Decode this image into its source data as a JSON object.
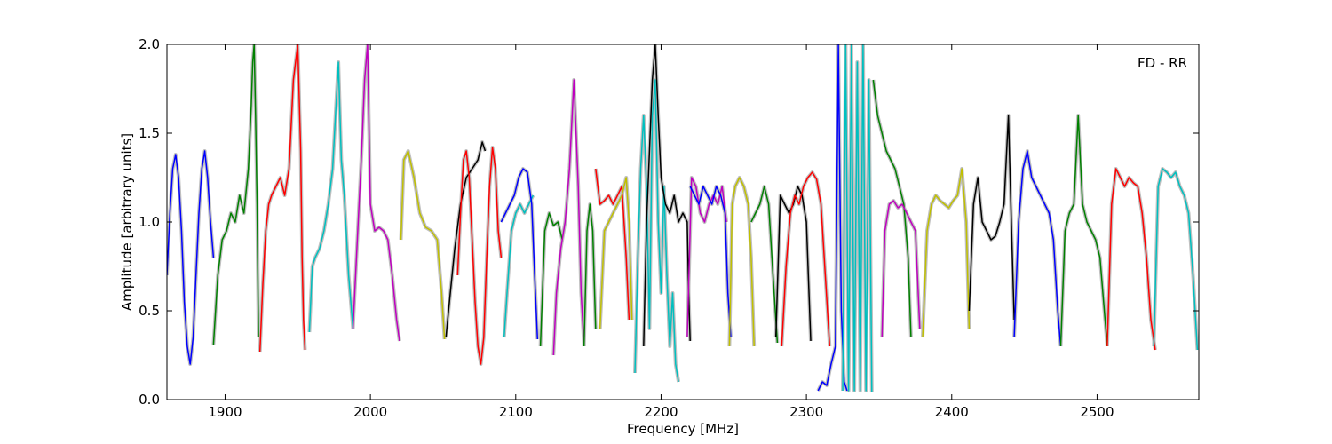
{
  "chart_data": {
    "type": "line",
    "annotation": "FD - RR",
    "xlabel": "Frequency [MHz]",
    "ylabel": "Amplitude [arbitrary units]",
    "xlim": [
      1860,
      2570
    ],
    "ylim": [
      0.0,
      2.0
    ],
    "x_ticks": [
      1900,
      2000,
      2100,
      2200,
      2300,
      2400,
      2500
    ],
    "x_tick_labels": [
      "1900",
      "2000",
      "2100",
      "2200",
      "2300",
      "2400",
      "2500"
    ],
    "y_ticks": [
      0.0,
      0.5,
      1.0,
      1.5,
      2.0
    ],
    "y_tick_labels": [
      "0.0",
      "0.5",
      "1.0",
      "1.5",
      "2.0"
    ],
    "grid": false,
    "legend": "none",
    "background_color": "#c0c0c0",
    "series": [
      {
        "color": "#0000ff",
        "x": [
          1860,
          1862,
          1864,
          1866,
          1868,
          1870,
          1872,
          1874,
          1876,
          1878,
          1880,
          1882,
          1884,
          1886,
          1888,
          1890,
          1892
        ],
        "y": [
          0.7,
          1.05,
          1.3,
          1.38,
          1.25,
          0.95,
          0.55,
          0.3,
          0.2,
          0.35,
          0.7,
          1.05,
          1.3,
          1.4,
          1.25,
          1.0,
          0.8
        ]
      },
      {
        "color": "#008000",
        "x": [
          1892,
          1895,
          1898,
          1901,
          1904,
          1907,
          1910,
          1913,
          1916,
          1918,
          1919,
          1920,
          1921,
          1922,
          1923
        ],
        "y": [
          0.31,
          0.7,
          0.9,
          0.95,
          1.05,
          1.0,
          1.15,
          1.05,
          1.3,
          1.65,
          1.9,
          2.0,
          1.6,
          1.1,
          0.35
        ]
      },
      {
        "color": "#ff0000",
        "x": [
          1924,
          1926,
          1928,
          1930,
          1932,
          1935,
          1938,
          1941,
          1944,
          1947,
          1950,
          1952,
          1953,
          1954,
          1955
        ],
        "y": [
          0.27,
          0.65,
          0.95,
          1.1,
          1.15,
          1.2,
          1.25,
          1.15,
          1.3,
          1.8,
          2.0,
          1.4,
          0.8,
          0.45,
          0.28
        ]
      },
      {
        "color": "#00bfbf",
        "x": [
          1958,
          1960,
          1962,
          1965,
          1968,
          1971,
          1974,
          1976,
          1978,
          1980,
          1982,
          1985,
          1988
        ],
        "y": [
          0.38,
          0.75,
          0.8,
          0.85,
          0.95,
          1.1,
          1.3,
          1.6,
          1.9,
          1.35,
          1.15,
          0.7,
          0.4
        ]
      },
      {
        "color": "#bf00bf",
        "x": [
          1988,
          1991,
          1994,
          1996,
          1998,
          2000,
          2003,
          2006,
          2009,
          2012,
          2015,
          2018,
          2020
        ],
        "y": [
          0.4,
          0.9,
          1.4,
          1.8,
          2.0,
          1.1,
          0.95,
          0.97,
          0.95,
          0.9,
          0.7,
          0.45,
          0.33
        ]
      },
      {
        "color": "#bfbf00",
        "x": [
          2021,
          2023,
          2026,
          2030,
          2034,
          2038,
          2042,
          2046,
          2049,
          2051
        ],
        "y": [
          0.9,
          1.35,
          1.4,
          1.25,
          1.05,
          0.97,
          0.95,
          0.9,
          0.6,
          0.34
        ]
      },
      {
        "color": "#000000",
        "x": [
          2052,
          2055,
          2058,
          2062,
          2066,
          2070,
          2074,
          2077,
          2079
        ],
        "y": [
          0.35,
          0.6,
          0.85,
          1.1,
          1.25,
          1.3,
          1.35,
          1.45,
          1.4
        ]
      },
      {
        "color": "#ff0000",
        "x": [
          2060,
          2062,
          2064,
          2066,
          2068,
          2070,
          2072,
          2074,
          2076,
          2078,
          2080,
          2082,
          2084,
          2086,
          2088,
          2090
        ],
        "y": [
          0.7,
          1.05,
          1.35,
          1.4,
          1.25,
          0.9,
          0.55,
          0.3,
          0.2,
          0.35,
          0.8,
          1.2,
          1.42,
          1.3,
          0.95,
          0.8
        ]
      },
      {
        "color": "#00bfbf",
        "x": [
          2092,
          2094,
          2097,
          2100,
          2103,
          2106,
          2109,
          2112
        ],
        "y": [
          0.35,
          0.6,
          0.95,
          1.05,
          1.1,
          1.05,
          1.1,
          1.15
        ]
      },
      {
        "color": "#0000ff",
        "x": [
          2090,
          2093,
          2096,
          2099,
          2102,
          2105,
          2108,
          2111,
          2113,
          2115
        ],
        "y": [
          1.0,
          1.05,
          1.1,
          1.15,
          1.25,
          1.3,
          1.28,
          1.1,
          0.7,
          0.34
        ]
      },
      {
        "color": "#008000",
        "x": [
          2117,
          2120,
          2123,
          2126,
          2129,
          2132
        ],
        "y": [
          0.3,
          0.95,
          1.05,
          0.98,
          1.0,
          0.9
        ]
      },
      {
        "color": "#bf00bf",
        "x": [
          2126,
          2128,
          2131,
          2134,
          2137,
          2140,
          2143,
          2145,
          2147
        ],
        "y": [
          0.25,
          0.6,
          0.85,
          1.0,
          1.3,
          1.8,
          1.2,
          0.6,
          0.3
        ]
      },
      {
        "color": "#008000",
        "x": [
          2147,
          2149,
          2151,
          2153,
          2155
        ],
        "y": [
          0.3,
          0.95,
          1.1,
          0.95,
          0.4
        ]
      },
      {
        "color": "#ff0000",
        "x": [
          2155,
          2158,
          2161,
          2164,
          2167,
          2170,
          2173,
          2176,
          2178
        ],
        "y": [
          1.3,
          1.1,
          1.12,
          1.15,
          1.1,
          1.15,
          1.2,
          0.8,
          0.45
        ]
      },
      {
        "color": "#bfbf00",
        "x": [
          2158,
          2161,
          2164,
          2167,
          2170,
          2173,
          2176,
          2178,
          2180
        ],
        "y": [
          0.4,
          0.95,
          1.0,
          1.05,
          1.1,
          1.15,
          1.25,
          1.0,
          0.45
        ]
      },
      {
        "color": "#00bfbf",
        "x": [
          2182,
          2184,
          2186,
          2188,
          2190,
          2192,
          2194,
          2196,
          2198,
          2200,
          2202,
          2204,
          2206,
          2208,
          2210,
          2212
        ],
        "y": [
          0.15,
          0.8,
          1.3,
          1.6,
          1.2,
          0.4,
          1.6,
          1.8,
          1.0,
          0.6,
          1.2,
          0.7,
          0.3,
          0.6,
          0.2,
          0.1
        ]
      },
      {
        "color": "#000000",
        "x": [
          2188,
          2190,
          2192,
          2194,
          2196,
          2198,
          2200,
          2203,
          2206,
          2209,
          2212,
          2215,
          2218,
          2219,
          2220
        ],
        "y": [
          0.3,
          1.0,
          1.4,
          1.8,
          2.0,
          1.6,
          1.25,
          1.1,
          1.05,
          1.15,
          1.0,
          1.05,
          1.0,
          0.6,
          0.33
        ]
      },
      {
        "color": "#bf00bf",
        "x": [
          2218,
          2221,
          2224,
          2227,
          2230,
          2233,
          2236,
          2239,
          2242,
          2245
        ],
        "y": [
          0.35,
          1.25,
          1.2,
          1.05,
          1.0,
          1.1,
          1.15,
          1.1,
          1.2,
          1.0
        ]
      },
      {
        "color": "#0000ff",
        "x": [
          2220,
          2223,
          2226,
          2229,
          2232,
          2235,
          2238,
          2241,
          2244,
          2246,
          2248
        ],
        "y": [
          1.2,
          1.15,
          1.1,
          1.2,
          1.15,
          1.1,
          1.2,
          1.15,
          1.05,
          0.6,
          0.35
        ]
      },
      {
        "color": "#bfbf00",
        "x": [
          2247,
          2249,
          2251,
          2254,
          2257,
          2260,
          2262,
          2264
        ],
        "y": [
          0.3,
          1.1,
          1.2,
          1.25,
          1.2,
          1.1,
          0.8,
          0.3
        ]
      },
      {
        "color": "#008000",
        "x": [
          2262,
          2265,
          2268,
          2271,
          2274,
          2277,
          2280
        ],
        "y": [
          1.0,
          1.05,
          1.1,
          1.2,
          1.1,
          0.7,
          0.32
        ]
      },
      {
        "color": "#000000",
        "x": [
          2279,
          2282,
          2285,
          2288,
          2291,
          2294,
          2297,
          2300,
          2303
        ],
        "y": [
          0.35,
          1.15,
          1.1,
          1.05,
          1.1,
          1.2,
          1.15,
          1.0,
          0.33
        ]
      },
      {
        "color": "#ff0000",
        "x": [
          2283,
          2286,
          2289,
          2292,
          2295,
          2298,
          2301,
          2304,
          2307,
          2310,
          2313,
          2316
        ],
        "y": [
          0.3,
          0.75,
          1.05,
          1.15,
          1.1,
          1.2,
          1.25,
          1.28,
          1.24,
          1.1,
          0.7,
          0.3
        ]
      },
      {
        "color": "#0000ff",
        "x": [
          2308,
          2311,
          2314,
          2317,
          2320,
          2322,
          2324,
          2326,
          2328
        ],
        "y": [
          0.05,
          0.1,
          0.08,
          0.2,
          0.3,
          2.0,
          0.5,
          0.1,
          0.05
        ]
      },
      {
        "color": "#00bfbf",
        "x": [
          2325,
          2327,
          2329,
          2331,
          2333,
          2335,
          2337,
          2339,
          2341,
          2343,
          2345
        ],
        "y": [
          0.05,
          2.0,
          0.05,
          2.0,
          0.05,
          1.9,
          0.05,
          2.0,
          0.05,
          1.8,
          0.04
        ]
      },
      {
        "color": "#008000",
        "x": [
          2346,
          2349,
          2352,
          2355,
          2358,
          2361,
          2364,
          2367,
          2370,
          2372
        ],
        "y": [
          1.8,
          1.6,
          1.5,
          1.4,
          1.35,
          1.3,
          1.2,
          1.1,
          0.8,
          0.35
        ]
      },
      {
        "color": "#bf00bf",
        "x": [
          2352,
          2354,
          2357,
          2360,
          2363,
          2366,
          2369,
          2372,
          2375,
          2378
        ],
        "y": [
          0.35,
          0.95,
          1.1,
          1.12,
          1.08,
          1.1,
          1.05,
          1.0,
          0.95,
          0.4
        ]
      },
      {
        "color": "#bfbf00",
        "x": [
          2380,
          2383,
          2386,
          2389,
          2392,
          2395,
          2398,
          2401,
          2404,
          2407,
          2410,
          2412
        ],
        "y": [
          0.35,
          0.95,
          1.1,
          1.15,
          1.12,
          1.1,
          1.08,
          1.12,
          1.15,
          1.3,
          1.0,
          0.4
        ]
      },
      {
        "color": "#000000",
        "x": [
          2412,
          2415,
          2418,
          2421,
          2424,
          2427,
          2430,
          2433,
          2436,
          2439,
          2441,
          2443
        ],
        "y": [
          0.5,
          1.1,
          1.25,
          1.0,
          0.95,
          0.9,
          0.92,
          1.0,
          1.1,
          1.6,
          1.0,
          0.45
        ]
      },
      {
        "color": "#0000ff",
        "x": [
          2443,
          2446,
          2449,
          2452,
          2455,
          2458,
          2461,
          2464,
          2467,
          2470,
          2473,
          2475
        ],
        "y": [
          0.35,
          1.0,
          1.3,
          1.4,
          1.25,
          1.2,
          1.15,
          1.1,
          1.05,
          0.9,
          0.5,
          0.3
        ]
      },
      {
        "color": "#008000",
        "x": [
          2475,
          2478,
          2481,
          2484,
          2487,
          2490,
          2493,
          2496,
          2499,
          2502,
          2505,
          2507
        ],
        "y": [
          0.3,
          0.95,
          1.05,
          1.1,
          1.6,
          1.1,
          1.0,
          0.95,
          0.9,
          0.8,
          0.5,
          0.3
        ]
      },
      {
        "color": "#ff0000",
        "x": [
          2507,
          2510,
          2513,
          2516,
          2519,
          2522,
          2525,
          2528,
          2531,
          2534,
          2537,
          2540
        ],
        "y": [
          0.3,
          1.1,
          1.3,
          1.25,
          1.2,
          1.25,
          1.22,
          1.2,
          1.05,
          0.8,
          0.45,
          0.28
        ]
      },
      {
        "color": "#00bfbf",
        "x": [
          2539,
          2542,
          2545,
          2548,
          2551,
          2554,
          2557,
          2560,
          2563,
          2566,
          2569
        ],
        "y": [
          0.3,
          1.2,
          1.3,
          1.28,
          1.25,
          1.28,
          1.2,
          1.15,
          1.05,
          0.7,
          0.28
        ]
      }
    ]
  }
}
